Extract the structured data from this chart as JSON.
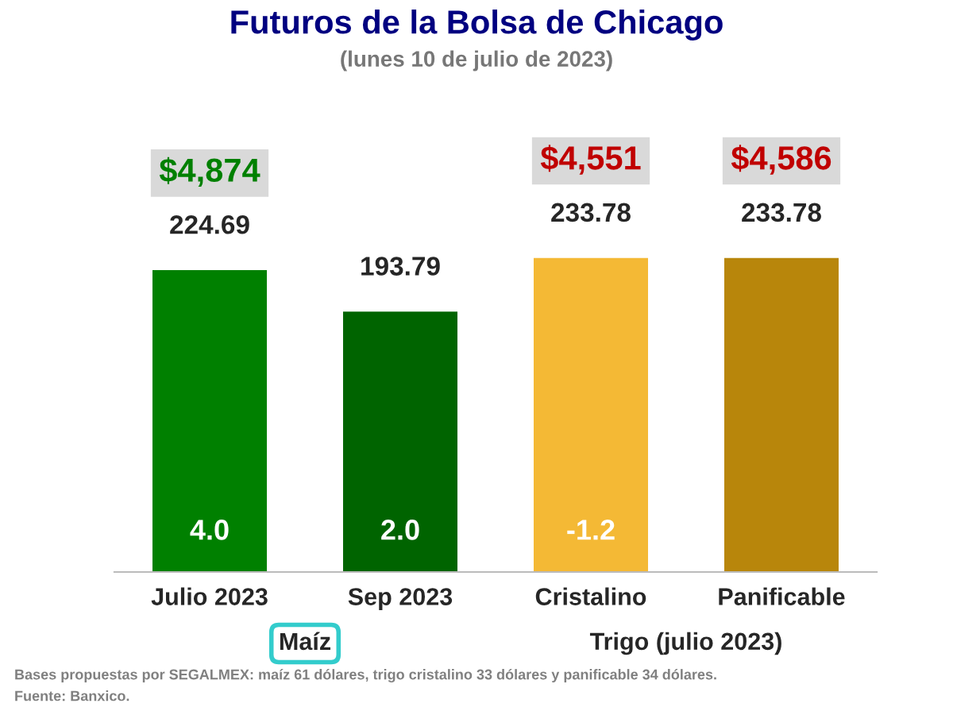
{
  "chart_data": {
    "type": "bar",
    "title": "Futuros de la Bolsa de Chicago",
    "subtitle": "(lunes 10 de julio de 2023)",
    "categories": [
      "Julio 2023",
      "Sep 2023",
      "Cristalino",
      "Panificable"
    ],
    "values": [
      224.69,
      193.79,
      233.78,
      233.78
    ],
    "colors": [
      "#008000",
      "#006400",
      "#f4b935",
      "#b8860b"
    ],
    "data_labels": true,
    "tick_labels": "x",
    "grid": false,
    "legend": false,
    "annotations": [
      "4.0",
      "2.0",
      "-1.2",
      "$4,874",
      "$4,551",
      "$4,586",
      "Maíz",
      "Trigo (julio 2023)",
      "Bases propuestas por SEGALMEX: maíz 61 dólares, trigo cristalino 33 dólares y panificable 34 dólares.",
      "Fuente: Banxico."
    ]
  }
}
